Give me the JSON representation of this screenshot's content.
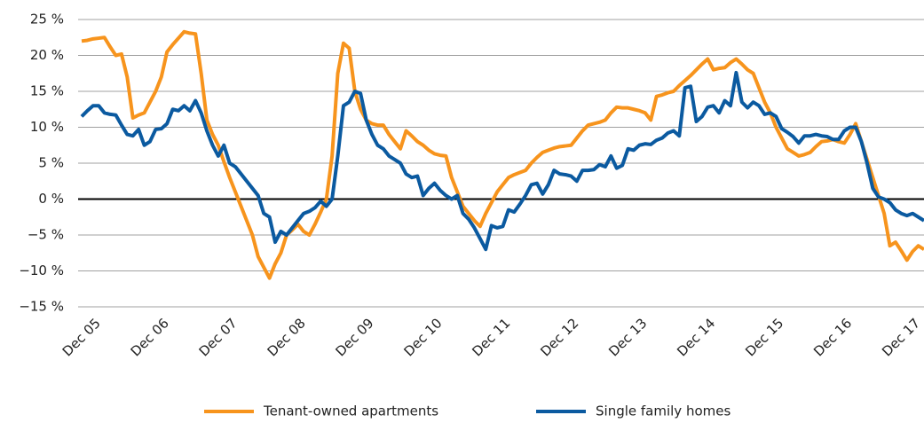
{
  "chart_data": {
    "type": "line",
    "categories": [
      null,
      null,
      "Dec 05",
      null,
      null,
      null,
      null,
      null,
      null,
      null,
      null,
      null,
      null,
      null,
      "Dec 06",
      null,
      null,
      null,
      null,
      null,
      null,
      null,
      null,
      null,
      null,
      null,
      "Dec 07",
      null,
      null,
      null,
      null,
      null,
      null,
      null,
      null,
      null,
      null,
      null,
      "Dec 08",
      null,
      null,
      null,
      null,
      null,
      null,
      null,
      null,
      null,
      null,
      null,
      "Dec 09",
      null,
      null,
      null,
      null,
      null,
      null,
      null,
      null,
      null,
      null,
      null,
      "Dec 10",
      null,
      null,
      null,
      null,
      null,
      null,
      null,
      null,
      null,
      null,
      null,
      "Dec 11",
      null,
      null,
      null,
      null,
      null,
      null,
      null,
      null,
      null,
      null,
      null,
      "Dec 12",
      null,
      null,
      null,
      null,
      null,
      null,
      null,
      null,
      null,
      null,
      null,
      "Dec 13",
      null,
      null,
      null,
      null,
      null,
      null,
      null,
      null,
      null,
      null,
      null,
      "Dec 14",
      null,
      null,
      null,
      null,
      null,
      null,
      null,
      null,
      null,
      null,
      null,
      "Dec 15",
      null,
      null,
      null,
      null,
      null,
      null,
      null,
      null,
      null,
      null,
      null,
      "Dec 16",
      null,
      null,
      null,
      null,
      null,
      null,
      null,
      null,
      null,
      null,
      null,
      "Dec 17",
      null,
      null
    ],
    "series": [
      {
        "name": "Tenant-owned apartments",
        "color": "#f7941d",
        "values": [
          22,
          22.1,
          22.3,
          22.4,
          22.5,
          21.2,
          20,
          20.2,
          17,
          11.3,
          11.7,
          12,
          13.5,
          15,
          17,
          20.5,
          21.5,
          22.4,
          23.3,
          23.1,
          23,
          17.5,
          11,
          9,
          7.5,
          5.2,
          3,
          1,
          -1,
          -3,
          -5,
          -8,
          -9.5,
          -11,
          -9,
          -7.5,
          -5,
          -4.3,
          -3.5,
          -4.5,
          -5,
          -3.5,
          -1.8,
          0,
          6,
          17.5,
          21.7,
          21,
          15,
          12.5,
          11,
          10.5,
          10.3,
          10.3,
          9,
          8,
          7,
          9.5,
          8.8,
          8,
          7.5,
          6.8,
          6.3,
          6.1,
          6,
          3,
          1,
          -1,
          -2,
          -3,
          -3.8,
          -2,
          -0.5,
          1,
          2,
          3,
          3.4,
          3.7,
          4,
          5,
          5.8,
          6.5,
          6.8,
          7.1,
          7.3,
          7.4,
          7.5,
          8.5,
          9.5,
          10.3,
          10.5,
          10.7,
          11,
          12,
          12.8,
          12.7,
          12.7,
          12.5,
          12.3,
          12,
          11,
          14.3,
          14.5,
          14.8,
          15,
          15.8,
          16.5,
          17.2,
          18,
          18.8,
          19.5,
          18,
          18.2,
          18.3,
          19,
          19.5,
          18.8,
          18,
          17.5,
          15.5,
          13.5,
          12,
          10,
          8.5,
          7,
          6.5,
          6,
          6.2,
          6.5,
          7.3,
          8,
          8.1,
          8.3,
          8,
          7.8,
          9,
          10.5,
          8,
          5.5,
          3,
          0.5,
          -2,
          -6.5,
          -6,
          -7.2,
          -8.5,
          -7.3,
          -6.5,
          -7
        ]
      },
      {
        "name": "Single family homes",
        "color": "#0b5aa0",
        "values": [
          11.5,
          12.3,
          13,
          13,
          12,
          11.8,
          11.7,
          10.3,
          9,
          8.8,
          9.7,
          7.5,
          8,
          9.7,
          9.8,
          10.5,
          12.5,
          12.3,
          13,
          12.3,
          13.7,
          12,
          9.5,
          7.5,
          6,
          7.5,
          5,
          4.5,
          3.5,
          2.5,
          1.5,
          0.5,
          -2,
          -2.5,
          -6,
          -4.5,
          -5,
          -4,
          -3,
          -2,
          -1.7,
          -1.2,
          -0.3,
          -1,
          0,
          6,
          13,
          13.5,
          15,
          14.7,
          11,
          9,
          7.5,
          7,
          6,
          5.5,
          5,
          3.5,
          3,
          3.2,
          0.5,
          1.5,
          2.2,
          1.2,
          0.5,
          0,
          0.5,
          -2,
          -2.8,
          -4,
          -5.5,
          -7,
          -3.7,
          -4,
          -3.8,
          -1.5,
          -1.8,
          -0.7,
          0.5,
          2,
          2.2,
          0.7,
          2,
          4,
          3.5,
          3.4,
          3.2,
          2.5,
          4,
          4,
          4.1,
          4.8,
          4.5,
          6,
          4.3,
          4.7,
          7,
          6.8,
          7.5,
          7.7,
          7.6,
          8.2,
          8.5,
          9.2,
          9.5,
          8.8,
          15.5,
          15.7,
          10.8,
          11.5,
          12.8,
          13,
          12,
          13.7,
          13,
          17.6,
          13.5,
          12.7,
          13.5,
          13,
          11.8,
          12,
          11.5,
          9.8,
          9.3,
          8.7,
          7.8,
          8.8,
          8.8,
          9,
          8.8,
          8.7,
          8.3,
          8.3,
          9.5,
          10,
          10,
          8,
          5,
          1.5,
          0.3,
          0,
          -0.5,
          -1.5,
          -2,
          -2.3,
          -2,
          -2.5,
          -3
        ]
      }
    ],
    "ylim": [
      -15,
      25
    ],
    "yticks": [
      {
        "value": -15,
        "label": "−15 %"
      },
      {
        "value": -10,
        "label": "−10 %"
      },
      {
        "value": -5,
        "label": "−5 %"
      },
      {
        "value": 0,
        "label": "0 %"
      },
      {
        "value": 5,
        "label": "5 %"
      },
      {
        "value": 10,
        "label": "10 %"
      },
      {
        "value": 15,
        "label": "15 %"
      },
      {
        "value": 20,
        "label": "20 %"
      },
      {
        "value": 25,
        "label": "25 %"
      }
    ],
    "grid": true,
    "legend": "bottom"
  }
}
